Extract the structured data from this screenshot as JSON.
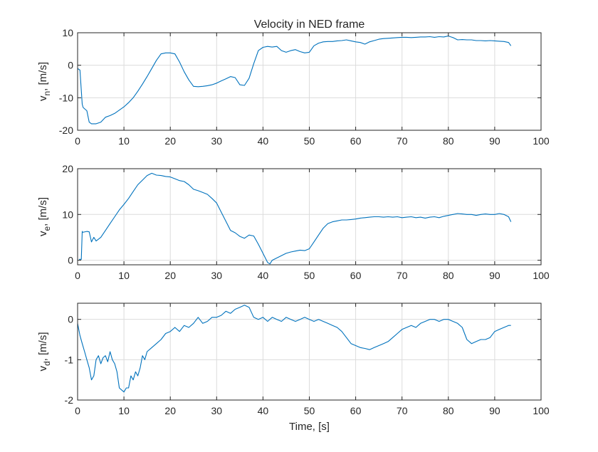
{
  "chart_data": [
    {
      "type": "line",
      "title": "Velocity in NED frame",
      "ylabel_main": "v",
      "ylabel_sub": "n",
      "ylabel_rest": ", [m/s]",
      "xlabel": "",
      "xlim": [
        0,
        100
      ],
      "ylim": [
        -20,
        10
      ],
      "xticks": [
        0,
        10,
        20,
        30,
        40,
        50,
        60,
        70,
        80,
        90,
        100
      ],
      "yticks": [
        -20,
        -10,
        0,
        10
      ],
      "grid": true,
      "color": "#0072BD",
      "series": [
        {
          "x": [
            0,
            0.5,
            1,
            1.2,
            2,
            2.5,
            3,
            4,
            5,
            6,
            7,
            8,
            9,
            10,
            11,
            12,
            13,
            14,
            15,
            16,
            17,
            18,
            19,
            20,
            21,
            22,
            23,
            24,
            25,
            26,
            27,
            28,
            29,
            30,
            31,
            32,
            33,
            34,
            35,
            36,
            37,
            38,
            39,
            40,
            41,
            42,
            43,
            44,
            45,
            46,
            47,
            48,
            49,
            50,
            51,
            52,
            53,
            54,
            55,
            56,
            57,
            58,
            59,
            60,
            61,
            62,
            63,
            64,
            65,
            66,
            67,
            68,
            69,
            70,
            71,
            72,
            73,
            74,
            75,
            76,
            77,
            78,
            79,
            80,
            81,
            82,
            83,
            84,
            85,
            86,
            87,
            88,
            89,
            90,
            91,
            92,
            93,
            93.5
          ],
          "y": [
            -1,
            -1.5,
            -12,
            -13,
            -14,
            -17.5,
            -18,
            -18,
            -17.5,
            -16,
            -15.5,
            -14.8,
            -13.8,
            -12.8,
            -11.5,
            -10,
            -8,
            -5.8,
            -3.5,
            -1,
            1.5,
            3.5,
            3.8,
            3.8,
            3.5,
            1,
            -2,
            -4.5,
            -6.5,
            -6.6,
            -6.5,
            -6.3,
            -6,
            -5.5,
            -4.8,
            -4.2,
            -3.5,
            -3.8,
            -6,
            -6.2,
            -4,
            0.5,
            4.5,
            5.5,
            5.8,
            5.6,
            5.8,
            4.5,
            4,
            4.5,
            4.8,
            4.2,
            3.8,
            4,
            6,
            6.8,
            7.2,
            7.3,
            7.3,
            7.5,
            7.6,
            7.8,
            7.5,
            7.2,
            7,
            6.5,
            7.2,
            7.6,
            8,
            8.2,
            8.3,
            8.4,
            8.5,
            8.6,
            8.6,
            8.5,
            8.6,
            8.7,
            8.7,
            8.8,
            8.6,
            8.8,
            8.7,
            9,
            8.5,
            7.8,
            7.9,
            7.8,
            7.8,
            7.6,
            7.6,
            7.5,
            7.6,
            7.5,
            7.4,
            7.3,
            7,
            6
          ]
        }
      ]
    },
    {
      "type": "line",
      "title": "",
      "ylabel_main": "v",
      "ylabel_sub": "e",
      "ylabel_rest": ", [m/s]",
      "xlabel": "",
      "xlim": [
        0,
        100
      ],
      "ylim": [
        -1,
        20
      ],
      "xticks": [
        0,
        10,
        20,
        30,
        40,
        50,
        60,
        70,
        80,
        90,
        100
      ],
      "yticks": [
        0,
        10,
        20
      ],
      "grid": true,
      "color": "#0072BD",
      "series": [
        {
          "x": [
            0.3,
            0.8,
            1.0,
            1.1,
            2,
            2.5,
            3,
            3.5,
            4,
            5,
            6,
            7,
            8,
            9,
            10,
            11,
            12,
            13,
            14,
            15,
            16,
            17,
            18,
            19,
            20,
            21,
            22,
            23,
            24,
            25,
            26,
            27,
            28,
            29,
            30,
            31,
            32,
            33,
            34,
            35,
            36,
            37,
            38,
            39,
            40,
            41,
            41.5,
            42,
            43,
            44,
            45,
            46,
            47,
            48,
            49,
            50,
            51,
            52,
            53,
            54,
            55,
            56,
            57,
            58,
            59,
            60,
            61,
            62,
            63,
            64,
            65,
            66,
            67,
            68,
            69,
            70,
            71,
            72,
            73,
            74,
            75,
            76,
            77,
            78,
            79,
            80,
            81,
            82,
            83,
            84,
            85,
            86,
            87,
            88,
            89,
            90,
            91,
            92,
            93,
            93.5
          ],
          "y": [
            0.2,
            0.2,
            6.3,
            6.1,
            6.3,
            6.2,
            4,
            5,
            4.2,
            5,
            6.5,
            8,
            9.5,
            11,
            12.2,
            13.5,
            15,
            16.5,
            17.5,
            18.5,
            19,
            18.6,
            18.5,
            18.3,
            18.2,
            17.8,
            17.4,
            17.2,
            16.5,
            15.5,
            15.2,
            14.8,
            14.4,
            13.5,
            12.5,
            10.5,
            8.5,
            6.5,
            6,
            5.2,
            4.8,
            5.5,
            5.3,
            3.5,
            1.5,
            -0.5,
            -0.8,
            0,
            0.5,
            1,
            1.5,
            1.8,
            2,
            2.2,
            2.1,
            2.5,
            4,
            5.5,
            7,
            8,
            8.4,
            8.6,
            8.8,
            8.8,
            8.9,
            9,
            9.2,
            9.3,
            9.4,
            9.5,
            9.5,
            9.4,
            9.5,
            9.4,
            9.5,
            9.3,
            9.4,
            9.5,
            9.3,
            9.4,
            9.2,
            9.4,
            9.5,
            9.3,
            9.6,
            9.8,
            10,
            10.2,
            10.1,
            10,
            10,
            9.8,
            10,
            10.1,
            10,
            10,
            10.2,
            10,
            9.5,
            8.4
          ]
        }
      ]
    },
    {
      "type": "line",
      "title": "",
      "ylabel_main": "v",
      "ylabel_sub": "d",
      "ylabel_rest": ", [m/s]",
      "xlabel": "Time, [s]",
      "xlim": [
        0,
        100
      ],
      "ylim": [
        -2,
        0.4
      ],
      "xticks": [
        0,
        10,
        20,
        30,
        40,
        50,
        60,
        70,
        80,
        90,
        100
      ],
      "yticks": [
        -2,
        -1,
        0
      ],
      "grid": true,
      "color": "#0072BD",
      "series": [
        {
          "x": [
            0,
            0.5,
            1,
            1.5,
            2,
            2.5,
            3,
            3.5,
            4,
            4.5,
            5,
            5.5,
            6,
            6.5,
            7,
            7.5,
            8,
            8.5,
            9,
            9.5,
            10,
            10.5,
            11,
            11.5,
            12,
            12.5,
            13,
            13.5,
            14,
            14.5,
            15,
            16,
            17,
            18,
            19,
            20,
            21,
            22,
            23,
            24,
            25,
            26,
            27,
            28,
            29,
            30,
            31,
            32,
            33,
            34,
            35,
            36,
            37,
            38,
            39,
            40,
            41,
            42,
            43,
            44,
            45,
            46,
            47,
            48,
            49,
            50,
            51,
            52,
            53,
            54,
            55,
            56,
            57,
            58,
            59,
            60,
            61,
            62,
            63,
            64,
            65,
            66,
            67,
            68,
            69,
            70,
            71,
            72,
            73,
            74,
            75,
            76,
            77,
            78,
            79,
            80,
            81,
            82,
            83,
            84,
            85,
            86,
            87,
            88,
            89,
            90,
            91,
            92,
            93,
            93.5
          ],
          "y": [
            -0.1,
            -0.4,
            -0.6,
            -0.8,
            -1.0,
            -1.2,
            -1.5,
            -1.4,
            -1.0,
            -0.9,
            -1.1,
            -0.95,
            -0.9,
            -1.05,
            -0.8,
            -1.0,
            -1.1,
            -1.3,
            -1.7,
            -1.75,
            -1.8,
            -1.7,
            -1.7,
            -1.4,
            -1.5,
            -1.3,
            -1.4,
            -1.2,
            -0.9,
            -1.0,
            -0.8,
            -0.7,
            -0.6,
            -0.5,
            -0.35,
            -0.3,
            -0.2,
            -0.3,
            -0.15,
            -0.2,
            -0.1,
            0.05,
            -0.1,
            -0.05,
            0.05,
            0.05,
            0.1,
            0.2,
            0.15,
            0.25,
            0.3,
            0.35,
            0.3,
            0.05,
            0.0,
            0.05,
            -0.05,
            0.05,
            0.0,
            -0.05,
            0.05,
            0.0,
            -0.05,
            0.0,
            0.05,
            0.0,
            -0.05,
            0.0,
            -0.05,
            -0.1,
            -0.15,
            -0.2,
            -0.3,
            -0.45,
            -0.6,
            -0.65,
            -0.7,
            -0.72,
            -0.75,
            -0.7,
            -0.65,
            -0.6,
            -0.55,
            -0.45,
            -0.35,
            -0.25,
            -0.2,
            -0.15,
            -0.2,
            -0.1,
            -0.05,
            0.0,
            0.0,
            -0.05,
            0.0,
            0.0,
            -0.05,
            -0.1,
            -0.2,
            -0.5,
            -0.6,
            -0.55,
            -0.5,
            -0.5,
            -0.45,
            -0.3,
            -0.25,
            -0.2,
            -0.15,
            -0.15
          ]
        }
      ]
    }
  ]
}
